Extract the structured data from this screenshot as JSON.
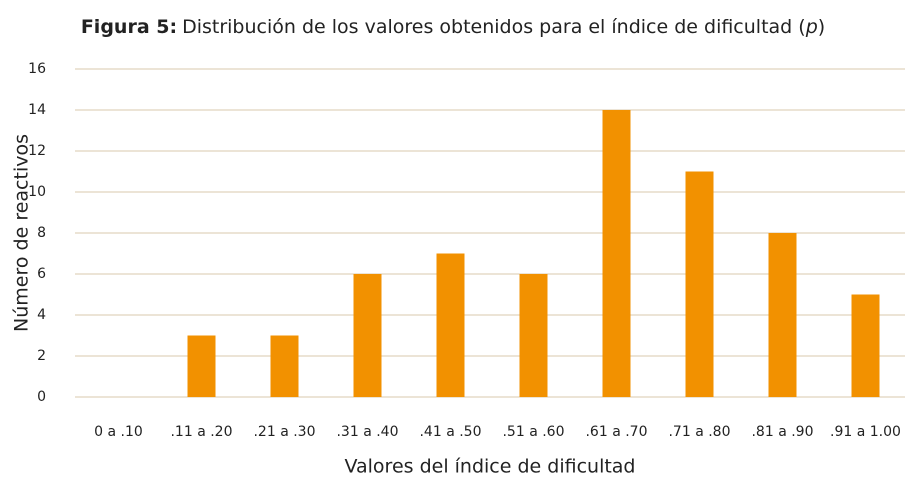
{
  "chart_data": {
    "type": "bar",
    "title": {
      "label": "Figura 5:",
      "text": "Distribución de los valores obtenidos para el índice de dificultad (",
      "symbol": "p",
      "close": ")"
    },
    "x_label": "Valores del índice de dificultad",
    "y_label": "Número de reactivos",
    "categories": [
      "0 a .10",
      ".11 a .20",
      ".21 a .30",
      ".31 a .40",
      ".41 a .50",
      ".51 a .60",
      ".61 a .70",
      ".71 a .80",
      ".81 a .90",
      ".91 a 1.00"
    ],
    "values": [
      0,
      3,
      3,
      6,
      7,
      6,
      14,
      11,
      8,
      5
    ],
    "color": "#f29100",
    "ylim": [
      0,
      16
    ],
    "yticks": [
      0,
      2,
      4,
      6,
      8,
      10,
      12,
      14,
      16
    ],
    "grid": true
  }
}
